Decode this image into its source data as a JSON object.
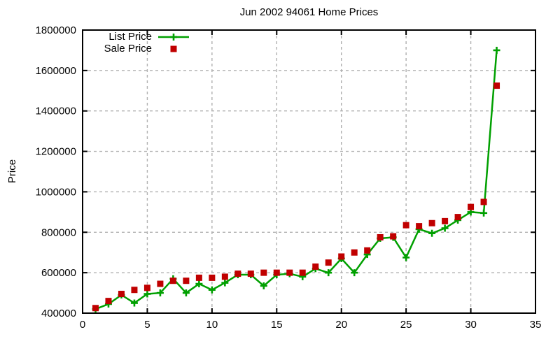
{
  "page": {
    "background": "#ffffff"
  },
  "chart_data": {
    "type": "line",
    "title": "Jun 2002 94061 Home Prices",
    "xlabel": "",
    "ylabel": "Price",
    "xlim": [
      0,
      35
    ],
    "ylim": [
      400000,
      1800000
    ],
    "xticks": [
      0,
      5,
      10,
      15,
      20,
      25,
      30,
      35
    ],
    "yticks": [
      400000,
      600000,
      800000,
      1000000,
      1200000,
      1400000,
      1600000,
      1800000
    ],
    "grid": true,
    "legend_position": "top-left-inside",
    "axis_color": "#000000",
    "grid_color": "#b0b0b0",
    "x": [
      1,
      2,
      3,
      4,
      5,
      6,
      7,
      8,
      9,
      10,
      11,
      12,
      13,
      14,
      15,
      16,
      17,
      18,
      19,
      20,
      21,
      22,
      23,
      24,
      25,
      26,
      27,
      28,
      29,
      30,
      31,
      32
    ],
    "series": [
      {
        "name": "List Price",
        "color": "#00a000",
        "marker": "plus",
        "line": true,
        "values": [
          420000,
          445000,
          490000,
          450000,
          495000,
          500000,
          570000,
          500000,
          545000,
          515000,
          550000,
          590000,
          590000,
          535000,
          590000,
          595000,
          580000,
          620000,
          600000,
          670000,
          600000,
          690000,
          770000,
          775000,
          675000,
          815000,
          795000,
          820000,
          860000,
          900000,
          895000,
          1700000
        ]
      },
      {
        "name": "Sale Price",
        "color": "#c00000",
        "marker": "square",
        "line": false,
        "values": [
          425000,
          460000,
          495000,
          515000,
          525000,
          545000,
          560000,
          560000,
          575000,
          575000,
          580000,
          595000,
          595000,
          600000,
          600000,
          600000,
          600000,
          630000,
          650000,
          680000,
          700000,
          710000,
          775000,
          780000,
          835000,
          830000,
          845000,
          855000,
          875000,
          925000,
          950000,
          1525000
        ]
      }
    ]
  }
}
